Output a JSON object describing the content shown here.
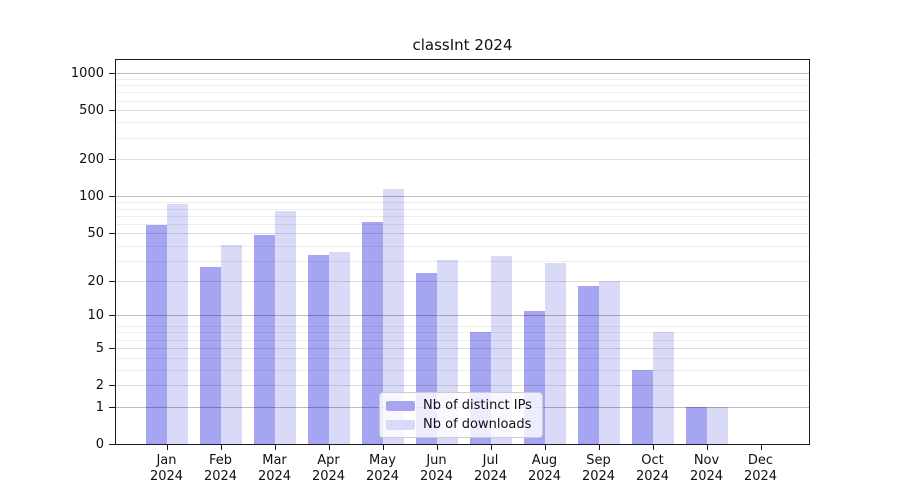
{
  "chart_data": {
    "type": "bar",
    "title": "classInt 2024",
    "categories": [
      "Jan",
      "Feb",
      "Mar",
      "Apr",
      "May",
      "Jun",
      "Jul",
      "Aug",
      "Sep",
      "Oct",
      "Nov",
      "Dec"
    ],
    "category_year": "2024",
    "series": [
      {
        "name": "Nb of distinct IPs",
        "color": "#a5a5f2",
        "values": [
          58,
          26,
          48,
          33,
          62,
          23,
          7,
          11,
          18,
          3,
          1,
          0
        ]
      },
      {
        "name": "Nb of downloads",
        "color": "#d9d9f8",
        "values": [
          86,
          40,
          76,
          35,
          114,
          30,
          32,
          28,
          20,
          7,
          1,
          0
        ]
      }
    ],
    "xlabel": "",
    "ylabel": "",
    "yscale": "log1p",
    "yticks": [
      0,
      1,
      2,
      5,
      10,
      20,
      50,
      100,
      200,
      500,
      1000
    ],
    "major_grid_values": [
      1,
      10,
      100,
      1000
    ],
    "minor_grid_u": [
      4,
      5,
      7,
      8,
      9,
      30,
      40,
      60,
      70,
      80,
      90,
      300,
      400,
      600,
      700,
      800,
      900
    ],
    "ylim": [
      0,
      1320
    ],
    "grid": true,
    "legend_position": "bottom-center",
    "axis_color": "#1a1a1a"
  }
}
